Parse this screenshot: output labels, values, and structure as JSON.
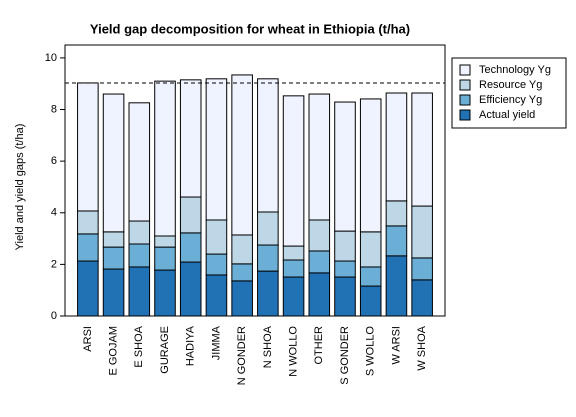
{
  "chart_data": {
    "type": "stacked_bar",
    "title": "Yield gap decomposition for wheat in Ethiopia (t/ha)",
    "y_label": "Yield and yield gaps (t/ha)",
    "categories": [
      "ARSI",
      "E GOJAM",
      "E SHOA",
      "GURAGE",
      "HADIYA",
      "JIMMA",
      "N GONDER",
      "N SHOA",
      "N WOLLO",
      "OTHER",
      "S GONDER",
      "S WOLLO",
      "W ARSI",
      "W SHOA"
    ],
    "series": [
      {
        "name": "Actual yield",
        "color": "#2171b5",
        "values": [
          2.13,
          1.82,
          1.9,
          1.78,
          2.09,
          1.59,
          1.36,
          1.74,
          1.51,
          1.67,
          1.51,
          1.16,
          2.33,
          1.4
        ]
      },
      {
        "name": "Efficiency Yg",
        "color": "#6baed6",
        "values": [
          1.05,
          0.85,
          0.89,
          0.89,
          1.13,
          0.81,
          0.66,
          1.01,
          0.66,
          0.85,
          0.62,
          0.74,
          1.16,
          0.85
        ]
      },
      {
        "name": "Resource Yg",
        "color": "#bdd7e7",
        "values": [
          0.89,
          0.59,
          0.89,
          0.43,
          1.39,
          1.32,
          1.12,
          1.28,
          0.54,
          1.2,
          1.16,
          1.36,
          0.97,
          2.01
        ]
      },
      {
        "name": "Technology Yg",
        "color": "#eff3ff",
        "values": [
          4.96,
          5.34,
          4.58,
          6.0,
          4.54,
          5.47,
          6.2,
          5.16,
          5.82,
          4.88,
          5.0,
          5.15,
          4.18,
          4.38
        ]
      }
    ],
    "reference_line": 9.03,
    "ylim": [
      0,
      10.5
    ],
    "yticks": [
      0,
      2,
      4,
      6,
      8,
      10
    ],
    "legend": "top-right-outside"
  }
}
